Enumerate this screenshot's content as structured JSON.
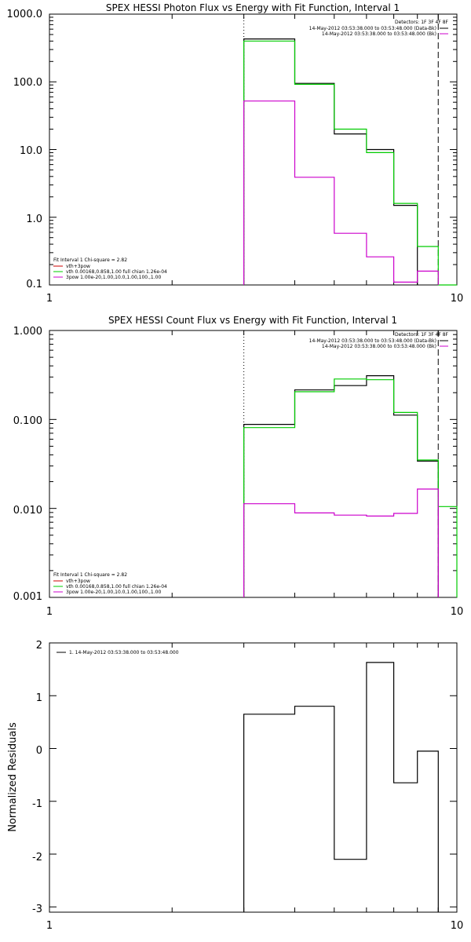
{
  "colors": {
    "black": "#000000",
    "green": "#00cc00",
    "magenta": "#cc00cc"
  },
  "chart_data": [
    {
      "type": "line",
      "title": "SPEX HESSI Photon Flux vs Energy with Fit Function, Interval 1",
      "xlabel": "",
      "ylabel": "",
      "x_scale": "log",
      "y_scale": "log",
      "xlim": [
        1,
        10
      ],
      "ylim": [
        0.1,
        1000
      ],
      "x_ticks": [
        1,
        10
      ],
      "x_tick_labels": [
        "1",
        "10"
      ],
      "y_ticks": [
        0.1,
        1,
        10,
        100,
        1000
      ],
      "y_tick_labels": [
        "0.1",
        "1.0",
        "10.0",
        "100.0",
        "1000.0"
      ],
      "vlines": [
        {
          "x": 3.0,
          "style": "dotted"
        },
        {
          "x": 9.0,
          "style": "dashed"
        }
      ],
      "bin_edges": [
        3.0,
        4.0,
        5.0,
        6.0,
        7.0,
        8.0,
        9.0,
        10.0
      ],
      "series": [
        {
          "values": [
            430,
            95,
            17,
            10,
            1.5,
            null,
            null
          ],
          "color": "#000000"
        },
        {
          "values": [
            400,
            92,
            20,
            9,
            1.6,
            0.37,
            0.1
          ],
          "color": "#00cc00"
        },
        {
          "values": [
            52,
            3.9,
            0.58,
            0.26,
            0.11,
            0.16,
            null
          ],
          "color": "#cc00cc"
        }
      ],
      "legend_top": {
        "position": "top-right",
        "lines": [
          {
            "text": "Detectors: 1F 3F 4F 8F",
            "color": ""
          },
          {
            "text": "14-May-2012 03:53:38.000 to 03:53:48.000 (Data-Bk)",
            "color": "#000000"
          },
          {
            "text": "14-May-2012 03:53:38.000 to 03:53:48.000 (Bk)",
            "color": "#cc00cc"
          }
        ]
      },
      "legend_bottom": {
        "position": "bottom-left",
        "lines": [
          {
            "text": "Fit Interval 1    Chi-square = 2.82",
            "color": ""
          },
          {
            "text": "vth+3pow",
            "color": "#cc0000"
          },
          {
            "text": "vth 0.00168,0.858,1.00   full chian 1.26e-04",
            "color": "#00cc00"
          },
          {
            "text": "3pow 1.00e-20,1.00,10.0,1.00,100.,1.00",
            "color": "#cc00cc"
          }
        ]
      }
    },
    {
      "type": "line",
      "title": "SPEX HESSI Count Flux vs Energy with Fit Function, Interval 1",
      "xlabel": "",
      "ylabel": "",
      "x_scale": "log",
      "y_scale": "log",
      "xlim": [
        1,
        10
      ],
      "ylim": [
        0.001,
        1
      ],
      "x_ticks": [
        1,
        10
      ],
      "x_tick_labels": [
        "1",
        "10"
      ],
      "y_ticks": [
        0.001,
        0.01,
        0.1,
        1
      ],
      "y_tick_labels": [
        "0.001",
        "0.010",
        "0.100",
        "1.000"
      ],
      "vlines": [
        {
          "x": 3.0,
          "style": "dotted"
        },
        {
          "x": 9.0,
          "style": "dashed"
        }
      ],
      "bin_edges": [
        3.0,
        4.0,
        5.0,
        6.0,
        7.0,
        8.0,
        9.0,
        10.0
      ],
      "series": [
        {
          "values": [
            0.088,
            0.215,
            0.24,
            0.31,
            0.112,
            0.034,
            null
          ],
          "color": "#000000"
        },
        {
          "values": [
            0.081,
            0.205,
            0.285,
            0.28,
            0.12,
            0.035,
            0.0105
          ],
          "color": "#00cc00"
        },
        {
          "values": [
            0.0113,
            0.0089,
            0.0084,
            0.0082,
            0.0088,
            0.0165,
            null
          ],
          "color": "#cc00cc"
        }
      ],
      "legend_top": {
        "position": "top-right",
        "lines": [
          {
            "text": "Detectors: 1F 3F 4F 8F",
            "color": ""
          },
          {
            "text": "14-May-2012 03:53:38.000 to 03:53:48.000 (Data-Bk)",
            "color": "#000000"
          },
          {
            "text": "14-May-2012 03:53:38.000 to 03:53:48.000 (Bk)",
            "color": "#cc00cc"
          }
        ]
      },
      "legend_bottom": {
        "position": "bottom-left",
        "lines": [
          {
            "text": "Fit Interval 1    Chi-square = 2.82",
            "color": ""
          },
          {
            "text": "vth+3pow",
            "color": "#cc0000"
          },
          {
            "text": "vth 0.00168,0.858,1.00   full chian 1.26e-04",
            "color": "#00cc00"
          },
          {
            "text": "3pow 1.00e-20,1.00,10.0,1.00,100.,1.00",
            "color": "#cc00cc"
          }
        ]
      }
    },
    {
      "type": "line",
      "title": "",
      "xlabel": "",
      "ylabel": "Normalized Residuals",
      "x_scale": "log",
      "y_scale": "linear",
      "xlim": [
        1,
        10
      ],
      "ylim": [
        -3.1,
        2.0
      ],
      "x_ticks": [
        1,
        10
      ],
      "x_tick_labels": [
        "1",
        "10"
      ],
      "y_ticks": [
        -3,
        -2,
        -1,
        0,
        1,
        2
      ],
      "y_tick_labels": [
        "-3",
        "-2",
        "-1",
        "0",
        "1",
        "2"
      ],
      "vlines": [],
      "bin_edges": [
        3.0,
        4.0,
        5.0,
        6.0,
        7.0,
        8.0,
        9.0
      ],
      "series": [
        {
          "values": [
            0.65,
            0.8,
            -2.1,
            1.63,
            -0.65,
            -0.05
          ],
          "color": "#000000"
        }
      ],
      "legend_top": {
        "position": "top-left",
        "lines": [
          {
            "text": "1. 14-May-2012 03:53:38.000 to 03:53:48.000",
            "color": "#000000"
          }
        ]
      },
      "legend_bottom": {
        "position": "",
        "lines": []
      }
    }
  ]
}
